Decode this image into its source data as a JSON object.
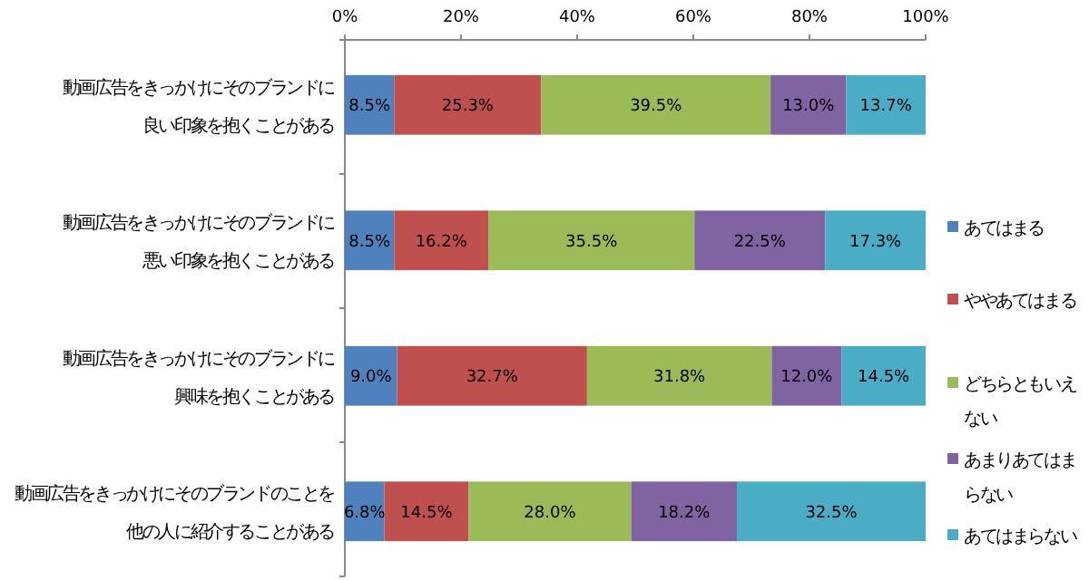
{
  "chart_data": {
    "type": "bar",
    "orientation": "horizontal",
    "stacked": true,
    "categories": [
      "動画広告をきっかけにそのブランドに良い印象を抱くことがある",
      "動画広告をきっかけにそのブランドに悪い印象を抱くことがある",
      "動画広告をきっかけにそのブランドに興味を抱くことがある",
      "動画広告をきっかけにそのブランドのことを他の人に紹介することがある"
    ],
    "series": [
      {
        "name": "あてはまる",
        "color": "#4f81bd",
        "values": [
          8.5,
          8.5,
          9.0,
          6.8
        ],
        "value_labels": [
          "8.5%",
          "8.5%",
          "9.0%",
          "6.8%"
        ]
      },
      {
        "name": "ややあてはまる",
        "color": "#c0504d",
        "values": [
          25.3,
          16.2,
          32.7,
          14.5
        ],
        "value_labels": [
          "25.3%",
          "16.2%",
          "32.7%",
          "14.5%"
        ]
      },
      {
        "name": "どちらともいえない",
        "color": "#9bbb59",
        "values": [
          39.5,
          35.5,
          31.8,
          28.0
        ],
        "value_labels": [
          "39.5%",
          "35.5%",
          "31.8%",
          "28.0%"
        ]
      },
      {
        "name": "あまりあてはまらない",
        "color": "#8064a2",
        "values": [
          13.0,
          22.5,
          12.0,
          18.2
        ],
        "value_labels": [
          "13.0%",
          "22.5%",
          "12.0%",
          "18.2%"
        ]
      },
      {
        "name": "あてはまらない",
        "color": "#4bacc6",
        "values": [
          13.7,
          17.3,
          14.5,
          32.5
        ],
        "value_labels": [
          "13.7%",
          "17.3%",
          "14.5%",
          "32.5%"
        ]
      }
    ],
    "xlim": [
      0,
      100
    ],
    "xticks": [
      {
        "value": 0,
        "label": "0%"
      },
      {
        "value": 20,
        "label": "20%"
      },
      {
        "value": 40,
        "label": "40%"
      },
      {
        "value": 60,
        "label": "60%"
      },
      {
        "value": 80,
        "label": "80%"
      },
      {
        "value": 100,
        "label": "100%"
      }
    ],
    "legend": "right",
    "grid": false
  }
}
